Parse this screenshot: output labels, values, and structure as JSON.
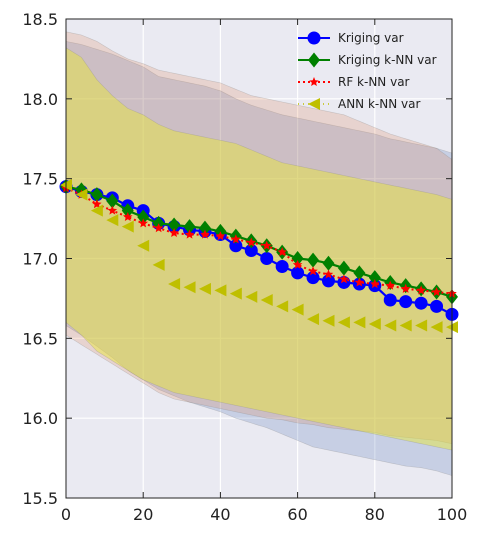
{
  "chart_data": {
    "type": "line",
    "xlim": [
      0,
      100
    ],
    "ylim": [
      15.5,
      18.5
    ],
    "x_ticks": [
      0,
      20,
      40,
      60,
      80,
      100
    ],
    "y_ticks": [
      15.5,
      16.0,
      16.5,
      17.0,
      17.5,
      18.0,
      18.5
    ],
    "x_tick_labels": [
      "0",
      "20",
      "40",
      "60",
      "80",
      "100"
    ],
    "y_tick_labels": [
      "15.5",
      "16.0",
      "16.5",
      "17.0",
      "17.5",
      "18.0",
      "18.5"
    ],
    "grid": true,
    "legend_position": "top-right",
    "x": [
      0,
      4,
      8,
      12,
      16,
      20,
      24,
      28,
      32,
      36,
      40,
      44,
      48,
      52,
      56,
      60,
      64,
      68,
      72,
      76,
      80,
      84,
      88,
      92,
      96,
      100
    ],
    "series": [
      {
        "name": "Kriging var",
        "color": "#0000ff",
        "marker": "circle",
        "line": "solid",
        "values": [
          17.45,
          17.42,
          17.4,
          17.38,
          17.33,
          17.3,
          17.22,
          17.2,
          17.18,
          17.17,
          17.15,
          17.08,
          17.05,
          17.0,
          16.95,
          16.91,
          16.88,
          16.86,
          16.85,
          16.84,
          16.83,
          16.74,
          16.73,
          16.72,
          16.7,
          16.65
        ]
      },
      {
        "name": "Kriging k-NN var",
        "color": "#008000",
        "marker": "diamond",
        "line": "solid",
        "values": [
          17.45,
          17.43,
          17.4,
          17.36,
          17.3,
          17.26,
          17.22,
          17.21,
          17.2,
          17.19,
          17.17,
          17.14,
          17.11,
          17.08,
          17.04,
          17.0,
          16.99,
          16.97,
          16.94,
          16.91,
          16.88,
          16.85,
          16.83,
          16.81,
          16.79,
          16.76
        ]
      },
      {
        "name": "RF k-NN var",
        "color": "#ff0000",
        "marker": "star",
        "line": "dotted",
        "values": [
          17.44,
          17.4,
          17.34,
          17.3,
          17.26,
          17.22,
          17.19,
          17.16,
          17.15,
          17.15,
          17.14,
          17.12,
          17.1,
          17.08,
          17.04,
          16.96,
          16.92,
          16.9,
          16.87,
          16.85,
          16.84,
          16.83,
          16.81,
          16.8,
          16.79,
          16.78
        ]
      },
      {
        "name": "ANN k-NN var",
        "color": "#bfbf00",
        "marker": "triangle-left",
        "line": "none",
        "values": [
          17.46,
          17.4,
          17.3,
          17.24,
          17.2,
          17.08,
          16.96,
          16.84,
          16.82,
          16.81,
          16.8,
          16.78,
          16.76,
          16.74,
          16.7,
          16.68,
          16.62,
          16.61,
          16.6,
          16.6,
          16.59,
          16.58,
          16.58,
          16.58,
          16.57,
          16.57
        ]
      }
    ],
    "bands": [
      {
        "color": "#4c72b0",
        "upper": [
          18.36,
          18.34,
          18.31,
          18.28,
          18.24,
          18.2,
          18.14,
          18.12,
          18.1,
          18.08,
          18.05,
          18.0,
          17.96,
          17.93,
          17.9,
          17.88,
          17.86,
          17.84,
          17.82,
          17.8,
          17.78,
          17.75,
          17.73,
          17.71,
          17.69,
          17.66
        ],
        "lower": [
          16.58,
          16.52,
          16.45,
          16.38,
          16.3,
          16.24,
          16.18,
          16.14,
          16.1,
          16.07,
          16.04,
          16.0,
          15.97,
          15.94,
          15.9,
          15.86,
          15.82,
          15.8,
          15.78,
          15.76,
          15.74,
          15.72,
          15.7,
          15.69,
          15.67,
          15.64
        ]
      },
      {
        "color": "#dd8452",
        "upper": [
          18.42,
          18.4,
          18.36,
          18.3,
          18.25,
          18.22,
          18.18,
          18.16,
          18.14,
          18.12,
          18.1,
          18.06,
          18.02,
          18.0,
          17.98,
          17.96,
          17.94,
          17.92,
          17.9,
          17.86,
          17.82,
          17.78,
          17.75,
          17.72,
          17.69,
          17.62
        ],
        "lower": [
          16.52,
          16.46,
          16.4,
          16.34,
          16.28,
          16.22,
          16.16,
          16.12,
          16.1,
          16.08,
          16.06,
          16.04,
          16.02,
          16.0,
          15.99,
          15.97,
          15.96,
          15.94,
          15.93,
          15.92,
          15.91,
          15.89,
          15.88,
          15.87,
          15.86,
          15.84
        ]
      },
      {
        "color": "#e8e830",
        "upper": [
          18.32,
          18.26,
          18.12,
          18.02,
          17.94,
          17.9,
          17.84,
          17.8,
          17.78,
          17.76,
          17.74,
          17.72,
          17.68,
          17.64,
          17.6,
          17.58,
          17.56,
          17.54,
          17.52,
          17.5,
          17.48,
          17.46,
          17.44,
          17.42,
          17.4,
          17.37
        ],
        "lower": [
          16.6,
          16.52,
          16.42,
          16.36,
          16.3,
          16.24,
          16.2,
          16.16,
          16.14,
          16.12,
          16.1,
          16.08,
          16.06,
          16.04,
          16.02,
          16.0,
          15.98,
          15.96,
          15.94,
          15.92,
          15.9,
          15.88,
          15.86,
          15.84,
          15.82,
          15.8
        ]
      }
    ]
  }
}
